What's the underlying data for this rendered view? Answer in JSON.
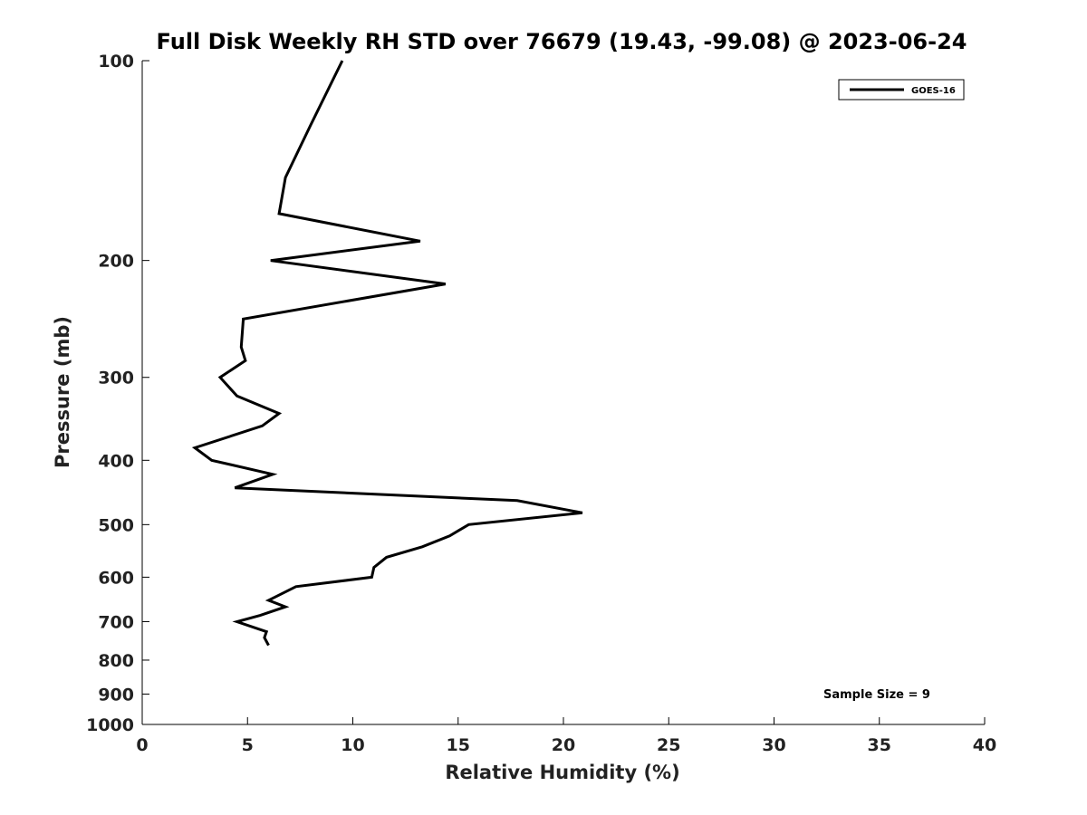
{
  "chart_data": {
    "type": "line",
    "title": "Full Disk Weekly RH STD over 76679 (19.43, -99.08) @ 2023-06-24",
    "xlabel": "Relative Humidity (%)",
    "ylabel": "Pressure (mb)",
    "xlim": [
      0,
      40
    ],
    "ylim": [
      100,
      1000
    ],
    "y_scale": "log",
    "y_inverted": true,
    "x_ticks": [
      "0",
      "5",
      "10",
      "15",
      "20",
      "25",
      "30",
      "35",
      "40"
    ],
    "y_ticks": [
      "100",
      "200",
      "300",
      "400",
      "500",
      "600",
      "700",
      "800",
      "900",
      "1000"
    ],
    "grid": false,
    "legend_position": "top-right",
    "annotation": "Sample Size = 9",
    "series": [
      {
        "name": "GOES-16",
        "color": "#000000",
        "points": [
          {
            "x": 9.5,
            "y": 100
          },
          {
            "x": 8.0,
            "y": 125
          },
          {
            "x": 6.8,
            "y": 150
          },
          {
            "x": 6.5,
            "y": 170
          },
          {
            "x": 13.2,
            "y": 187
          },
          {
            "x": 6.1,
            "y": 200
          },
          {
            "x": 14.4,
            "y": 217
          },
          {
            "x": 4.8,
            "y": 245
          },
          {
            "x": 4.7,
            "y": 270
          },
          {
            "x": 4.9,
            "y": 283
          },
          {
            "x": 3.7,
            "y": 300
          },
          {
            "x": 4.5,
            "y": 320
          },
          {
            "x": 6.5,
            "y": 340
          },
          {
            "x": 5.7,
            "y": 355
          },
          {
            "x": 2.5,
            "y": 383
          },
          {
            "x": 3.3,
            "y": 400
          },
          {
            "x": 6.2,
            "y": 420
          },
          {
            "x": 4.4,
            "y": 440
          },
          {
            "x": 17.8,
            "y": 460
          },
          {
            "x": 20.9,
            "y": 480
          },
          {
            "x": 15.5,
            "y": 500
          },
          {
            "x": 14.6,
            "y": 520
          },
          {
            "x": 13.3,
            "y": 540
          },
          {
            "x": 11.6,
            "y": 560
          },
          {
            "x": 11.0,
            "y": 580
          },
          {
            "x": 10.9,
            "y": 600
          },
          {
            "x": 7.3,
            "y": 620
          },
          {
            "x": 6.0,
            "y": 650
          },
          {
            "x": 6.8,
            "y": 665
          },
          {
            "x": 5.6,
            "y": 685
          },
          {
            "x": 4.5,
            "y": 700
          },
          {
            "x": 5.9,
            "y": 725
          },
          {
            "x": 5.8,
            "y": 740
          },
          {
            "x": 6.0,
            "y": 760
          }
        ]
      }
    ]
  }
}
